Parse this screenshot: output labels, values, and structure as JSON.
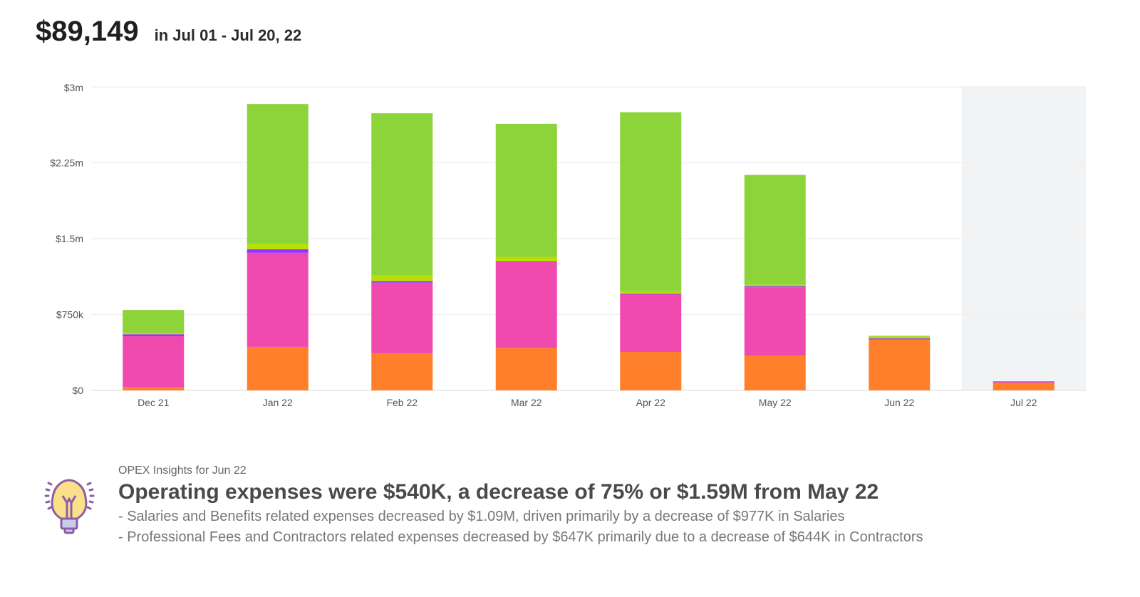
{
  "header": {
    "total": "$89,149",
    "period": "in Jul 01 - Jul 20, 22"
  },
  "chart_data": {
    "type": "bar",
    "stacked": true,
    "categories": [
      "Dec 21",
      "Jan 22",
      "Feb 22",
      "Mar 22",
      "Apr 22",
      "May 22",
      "Jun 22",
      "Jul 22"
    ],
    "y_ticks": [
      "$0",
      "$750k",
      "$1.5m",
      "$2.25m",
      "$3m"
    ],
    "ylim": [
      0,
      3000000
    ],
    "grid": true,
    "highlighted_category": "Jul 22",
    "series": [
      {
        "color": "#ff7f2a",
        "values": [
          35000,
          430000,
          365000,
          420000,
          380000,
          345000,
          500000,
          75000
        ]
      },
      {
        "color": "#f04aaf",
        "values": [
          500000,
          930000,
          700000,
          850000,
          570000,
          675000,
          10000,
          8000
        ]
      },
      {
        "color": "#9b30ff",
        "values": [
          20000,
          35000,
          15000,
          5000,
          5000,
          10000,
          5000,
          6000
        ]
      },
      {
        "color": "#b5e000",
        "values": [
          15000,
          55000,
          55000,
          45000,
          25000,
          15000,
          20000,
          0
        ]
      },
      {
        "color": "#8dd33a",
        "values": [
          225000,
          1380000,
          1605000,
          1315000,
          1770000,
          1085000,
          5000,
          0
        ]
      }
    ]
  },
  "insight": {
    "icon": "lightbulb-icon",
    "label": "OPEX Insights for Jun 22",
    "headline": "Operating expenses were $540K, a decrease of 75% or $1.59M from May 22",
    "lines": [
      "- Salaries and Benefits related expenses decreased by $1.09M, driven primarily by a decrease of $977K in Salaries",
      "- Professional Fees and Contractors related expenses decreased by $647K primarily due to a decrease of $644K in Contractors"
    ]
  }
}
